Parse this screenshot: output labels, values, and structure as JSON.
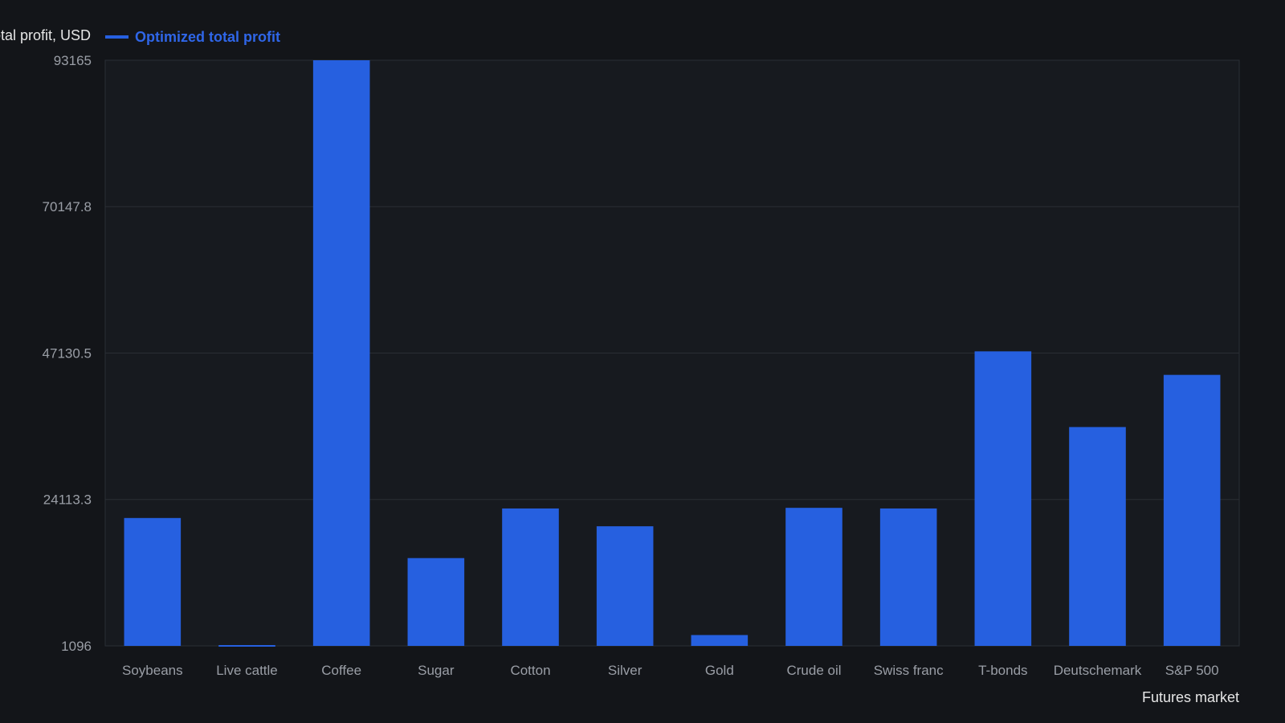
{
  "chart_data": {
    "type": "bar",
    "ylabel": "Total profit, USD",
    "xlabel": "Futures market",
    "legend": [
      {
        "name": "Optimized total profit",
        "color": "#2660e0"
      }
    ],
    "categories": [
      "Soybeans",
      "Live cattle",
      "Coffee",
      "Sugar",
      "Cotton",
      "Silver",
      "Gold",
      "Crude oil",
      "Swiss franc",
      "T-bonds",
      "Deutschemark",
      "S&P 500"
    ],
    "series": [
      {
        "name": "Optimized total profit",
        "color": "#2660e0",
        "values": [
          21200,
          1150,
          93165,
          14900,
          22700,
          19900,
          2800,
          22800,
          22700,
          47400,
          35500,
          43700
        ]
      }
    ],
    "ylim": [
      1096,
      93165
    ],
    "yticks": [
      "1096",
      "24113.3",
      "47130.5",
      "70147.8",
      "93165"
    ],
    "grid": true,
    "legend_position": "top-left"
  }
}
